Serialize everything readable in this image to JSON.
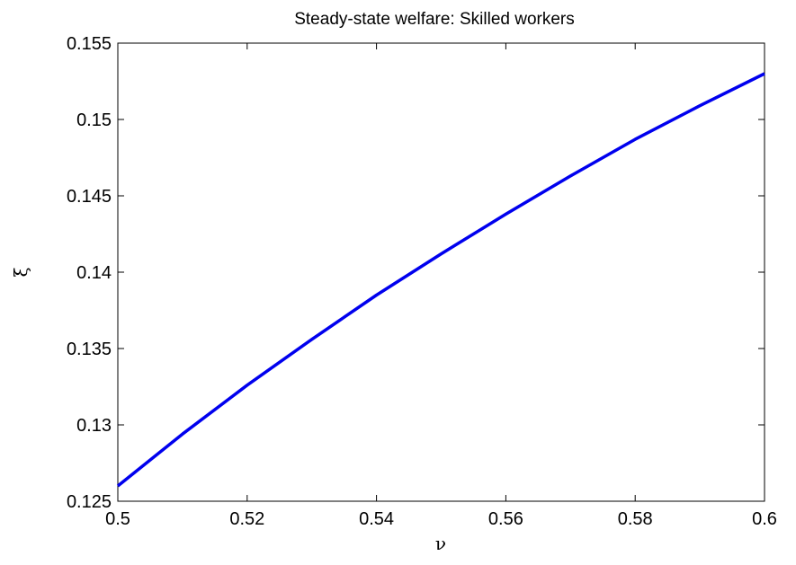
{
  "chart_data": {
    "type": "line",
    "title": "Steady-state welfare: Skilled workers",
    "xlabel": "ν",
    "ylabel": "ξ",
    "xlim": [
      0.5,
      0.6
    ],
    "ylim": [
      0.125,
      0.155
    ],
    "xticks": [
      0.5,
      0.52,
      0.54,
      0.56,
      0.58,
      0.6
    ],
    "yticks": [
      0.125,
      0.13,
      0.135,
      0.14,
      0.145,
      0.15,
      0.155
    ],
    "xtick_labels": [
      "0.5",
      "0.52",
      "0.54",
      "0.56",
      "0.58",
      "0.6"
    ],
    "ytick_labels": [
      "0.125",
      "0.13",
      "0.135",
      "0.14",
      "0.145",
      "0.15",
      "0.155"
    ],
    "grid": false,
    "series": [
      {
        "color": "#0000ee",
        "x": [
          0.5,
          0.51,
          0.52,
          0.53,
          0.54,
          0.55,
          0.56,
          0.57,
          0.58,
          0.59,
          0.6
        ],
        "y": [
          0.126,
          0.1294,
          0.1326,
          0.1356,
          0.1385,
          0.1412,
          0.1438,
          0.1463,
          0.1487,
          0.1509,
          0.153
        ]
      }
    ]
  }
}
